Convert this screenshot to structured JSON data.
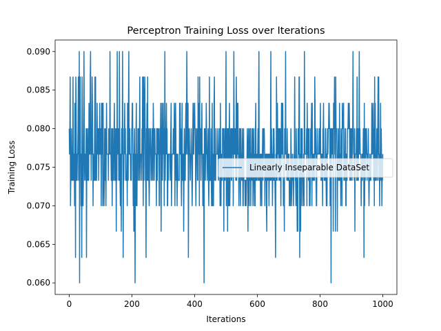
{
  "chart_data": {
    "type": "line",
    "title": "Perceptron Training Loss over Iterations",
    "xlabel": "Iterations",
    "ylabel": "Training Loss",
    "xlim": [
      -45,
      1045
    ],
    "ylim": [
      0.0585,
      0.0915
    ],
    "xticks": [
      0,
      200,
      400,
      600,
      800,
      1000
    ],
    "xtick_labels": [
      "0",
      "200",
      "400",
      "600",
      "800",
      "1000"
    ],
    "yticks": [
      0.06,
      0.065,
      0.07,
      0.075,
      0.08,
      0.085,
      0.09
    ],
    "ytick_labels": [
      "0.060",
      "0.065",
      "0.070",
      "0.075",
      "0.080",
      "0.085",
      "0.090"
    ],
    "grid": false,
    "legend_position": "center-right",
    "series": [
      {
        "name": "Linearly Inseparable DataSet",
        "color": "#1f77b4",
        "x_start": 0,
        "x_step": 1,
        "count": 1001,
        "value_levels": [
          0.06,
          0.0633,
          0.0667,
          0.07,
          0.0733,
          0.0767,
          0.08,
          0.0833,
          0.0867,
          0.09
        ],
        "typical_range": [
          0.07,
          0.08
        ],
        "extreme_points": [
          {
            "x": 33,
            "y": 0.06
          },
          {
            "x": 210,
            "y": 0.06
          },
          {
            "x": 430,
            "y": 0.06
          },
          {
            "x": 835,
            "y": 0.06
          },
          {
            "x": 20,
            "y": 0.0633
          },
          {
            "x": 40,
            "y": 0.0633
          },
          {
            "x": 55,
            "y": 0.0633
          },
          {
            "x": 172,
            "y": 0.0633
          },
          {
            "x": 245,
            "y": 0.0633
          },
          {
            "x": 305,
            "y": 0.0633
          },
          {
            "x": 380,
            "y": 0.0633
          },
          {
            "x": 643,
            "y": 0.0633
          },
          {
            "x": 658,
            "y": 0.0633
          },
          {
            "x": 735,
            "y": 0.0633
          },
          {
            "x": 905,
            "y": 0.0633
          },
          {
            "x": 940,
            "y": 0.0633
          },
          {
            "x": 32,
            "y": 0.09
          },
          {
            "x": 47,
            "y": 0.09
          },
          {
            "x": 68,
            "y": 0.09
          },
          {
            "x": 130,
            "y": 0.09
          },
          {
            "x": 153,
            "y": 0.09
          },
          {
            "x": 160,
            "y": 0.09
          },
          {
            "x": 170,
            "y": 0.09
          },
          {
            "x": 190,
            "y": 0.09
          },
          {
            "x": 305,
            "y": 0.09
          },
          {
            "x": 375,
            "y": 0.09
          },
          {
            "x": 500,
            "y": 0.09
          },
          {
            "x": 525,
            "y": 0.09
          },
          {
            "x": 605,
            "y": 0.09
          },
          {
            "x": 643,
            "y": 0.09
          },
          {
            "x": 690,
            "y": 0.09
          },
          {
            "x": 750,
            "y": 0.09
          },
          {
            "x": 905,
            "y": 0.09
          },
          {
            "x": 925,
            "y": 0.09
          }
        ]
      }
    ]
  }
}
